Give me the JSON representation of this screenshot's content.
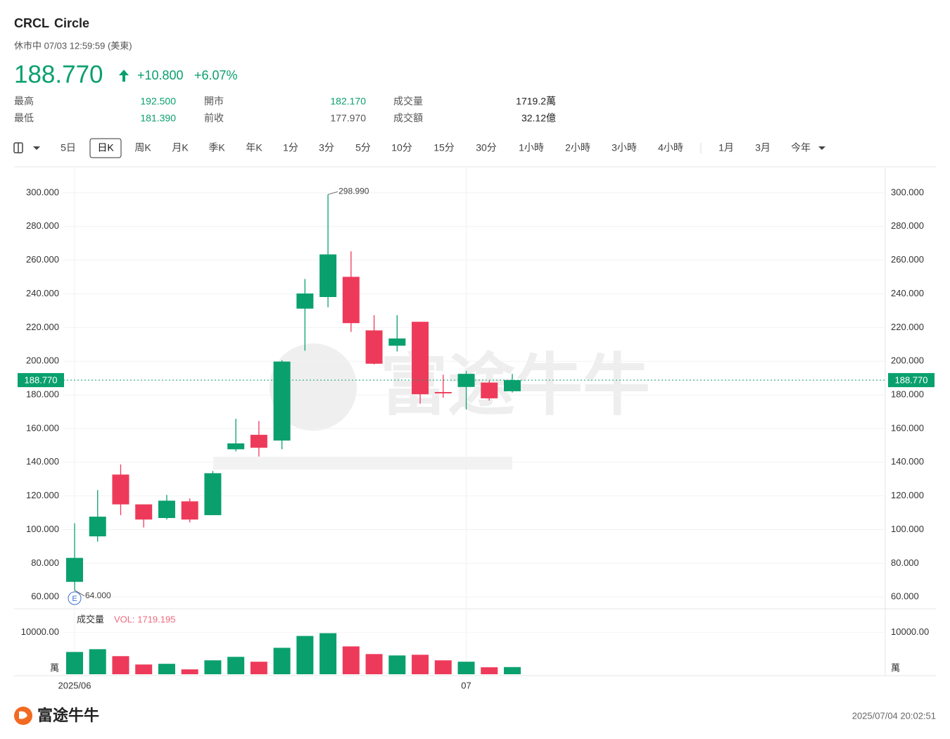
{
  "header": {
    "ticker": "CRCL",
    "name": "Circle",
    "status": "休市中 07/03 12:59:59 (美東)",
    "change": "+10.800",
    "change_pct": "+6.07%"
  },
  "stats": [
    [
      {
        "label": "最高",
        "value": "192.500"
      },
      {
        "label": "開市",
        "value": "182.170"
      },
      {
        "label": "成交量",
        "value": "1719.2萬"
      }
    ],
    [
      {
        "label": "最低",
        "value": "181.390"
      },
      {
        "label": "前收",
        "value": "177.970"
      },
      {
        "label": "成交額",
        "value": "32.12億"
      }
    ]
  ],
  "toolbar": [
    "5日",
    "日K",
    "周K",
    "月K",
    "季K",
    "年K",
    "1分",
    "3分",
    "5分",
    "10分",
    "15分",
    "30分",
    "1小時",
    "2小時",
    "3小時",
    "4小時",
    "1月",
    "3月",
    "今年"
  ],
  "toolbar_active": "日K",
  "chart_data": {
    "type": "candlestick",
    "up_color": "#0aa06e",
    "down_color": "#ee3a5a",
    "categories": [
      "2025/06",
      null,
      null,
      null,
      null,
      null,
      null,
      null,
      null,
      null,
      null,
      null,
      null,
      null,
      null,
      null,
      null,
      "07",
      null,
      null
    ],
    "open": [
      69.0,
      96.0,
      132.7,
      115.0,
      106.9,
      116.8,
      108.6,
      147.7,
      156.3,
      152.9,
      231.2,
      238.1,
      250.1,
      218.3,
      209.2,
      223.4,
      181.7,
      184.7,
      187.3,
      182.17
    ],
    "high": [
      103.75,
      123.5,
      138.7,
      115.0,
      120.6,
      118.5,
      134.8,
      165.8,
      164.5,
      200.6,
      248.8,
      298.99,
      265.2,
      227.3,
      227.3,
      223.4,
      192.0,
      194.2,
      188.6,
      192.5
    ],
    "low": [
      64.0,
      92.9,
      108.6,
      101.3,
      106.0,
      104.3,
      108.6,
      146.5,
      143.4,
      147.7,
      206.2,
      232.0,
      217.4,
      198.1,
      205.8,
      174.8,
      178.3,
      171.4,
      176.6,
      181.39
    ],
    "close": [
      83.23,
      107.7,
      115.0,
      106.0,
      117.2,
      106.0,
      133.5,
      151.2,
      148.6,
      199.8,
      240.2,
      263.4,
      222.6,
      198.5,
      213.5,
      180.4,
      180.9,
      192.5,
      177.97,
      188.77
    ],
    "ylim": [
      53.0,
      315.0
    ],
    "yticks": [
      {
        "value": 60,
        "label": "60.000"
      },
      {
        "value": 80,
        "label": "80.000"
      },
      {
        "value": 100,
        "label": "100.000"
      },
      {
        "value": 120,
        "label": "120.000"
      },
      {
        "value": 140,
        "label": "140.000"
      },
      {
        "value": 160,
        "label": "160.000"
      },
      {
        "value": 180,
        "label": "180.000"
      },
      {
        "value": 200,
        "label": "200.000"
      },
      {
        "value": 220,
        "label": "220.000"
      },
      {
        "value": 240,
        "label": "240.000"
      },
      {
        "value": 260,
        "label": "260.000"
      },
      {
        "value": 280,
        "label": "280.000"
      },
      {
        "value": 300,
        "label": "300.000"
      }
    ],
    "last_price": {
      "value": 188.77,
      "label": "188.770"
    },
    "annotations": [
      {
        "index": 11,
        "value": 298.99,
        "label": "298.990"
      },
      {
        "index": 0,
        "value": 64.0,
        "label": "64.000"
      }
    ],
    "grid": true,
    "volume": {
      "title": "成交量",
      "label": "VOL: 1719.195",
      "values": [
        5333,
        6000,
        4333,
        2333,
        2500,
        1167,
        3333,
        4167,
        3000,
        6333,
        9167,
        9833,
        6667,
        4833,
        4500,
        4667,
        3333,
        3000,
        1667,
        1719.195
      ],
      "ylim": [
        0,
        15500
      ],
      "yticks": [
        {
          "value": 10000,
          "label": "10000.00"
        }
      ],
      "unit": "萬"
    }
  },
  "footer": {
    "brand": "富途牛牛",
    "timestamp": "2025/07/04 20:02:51"
  }
}
